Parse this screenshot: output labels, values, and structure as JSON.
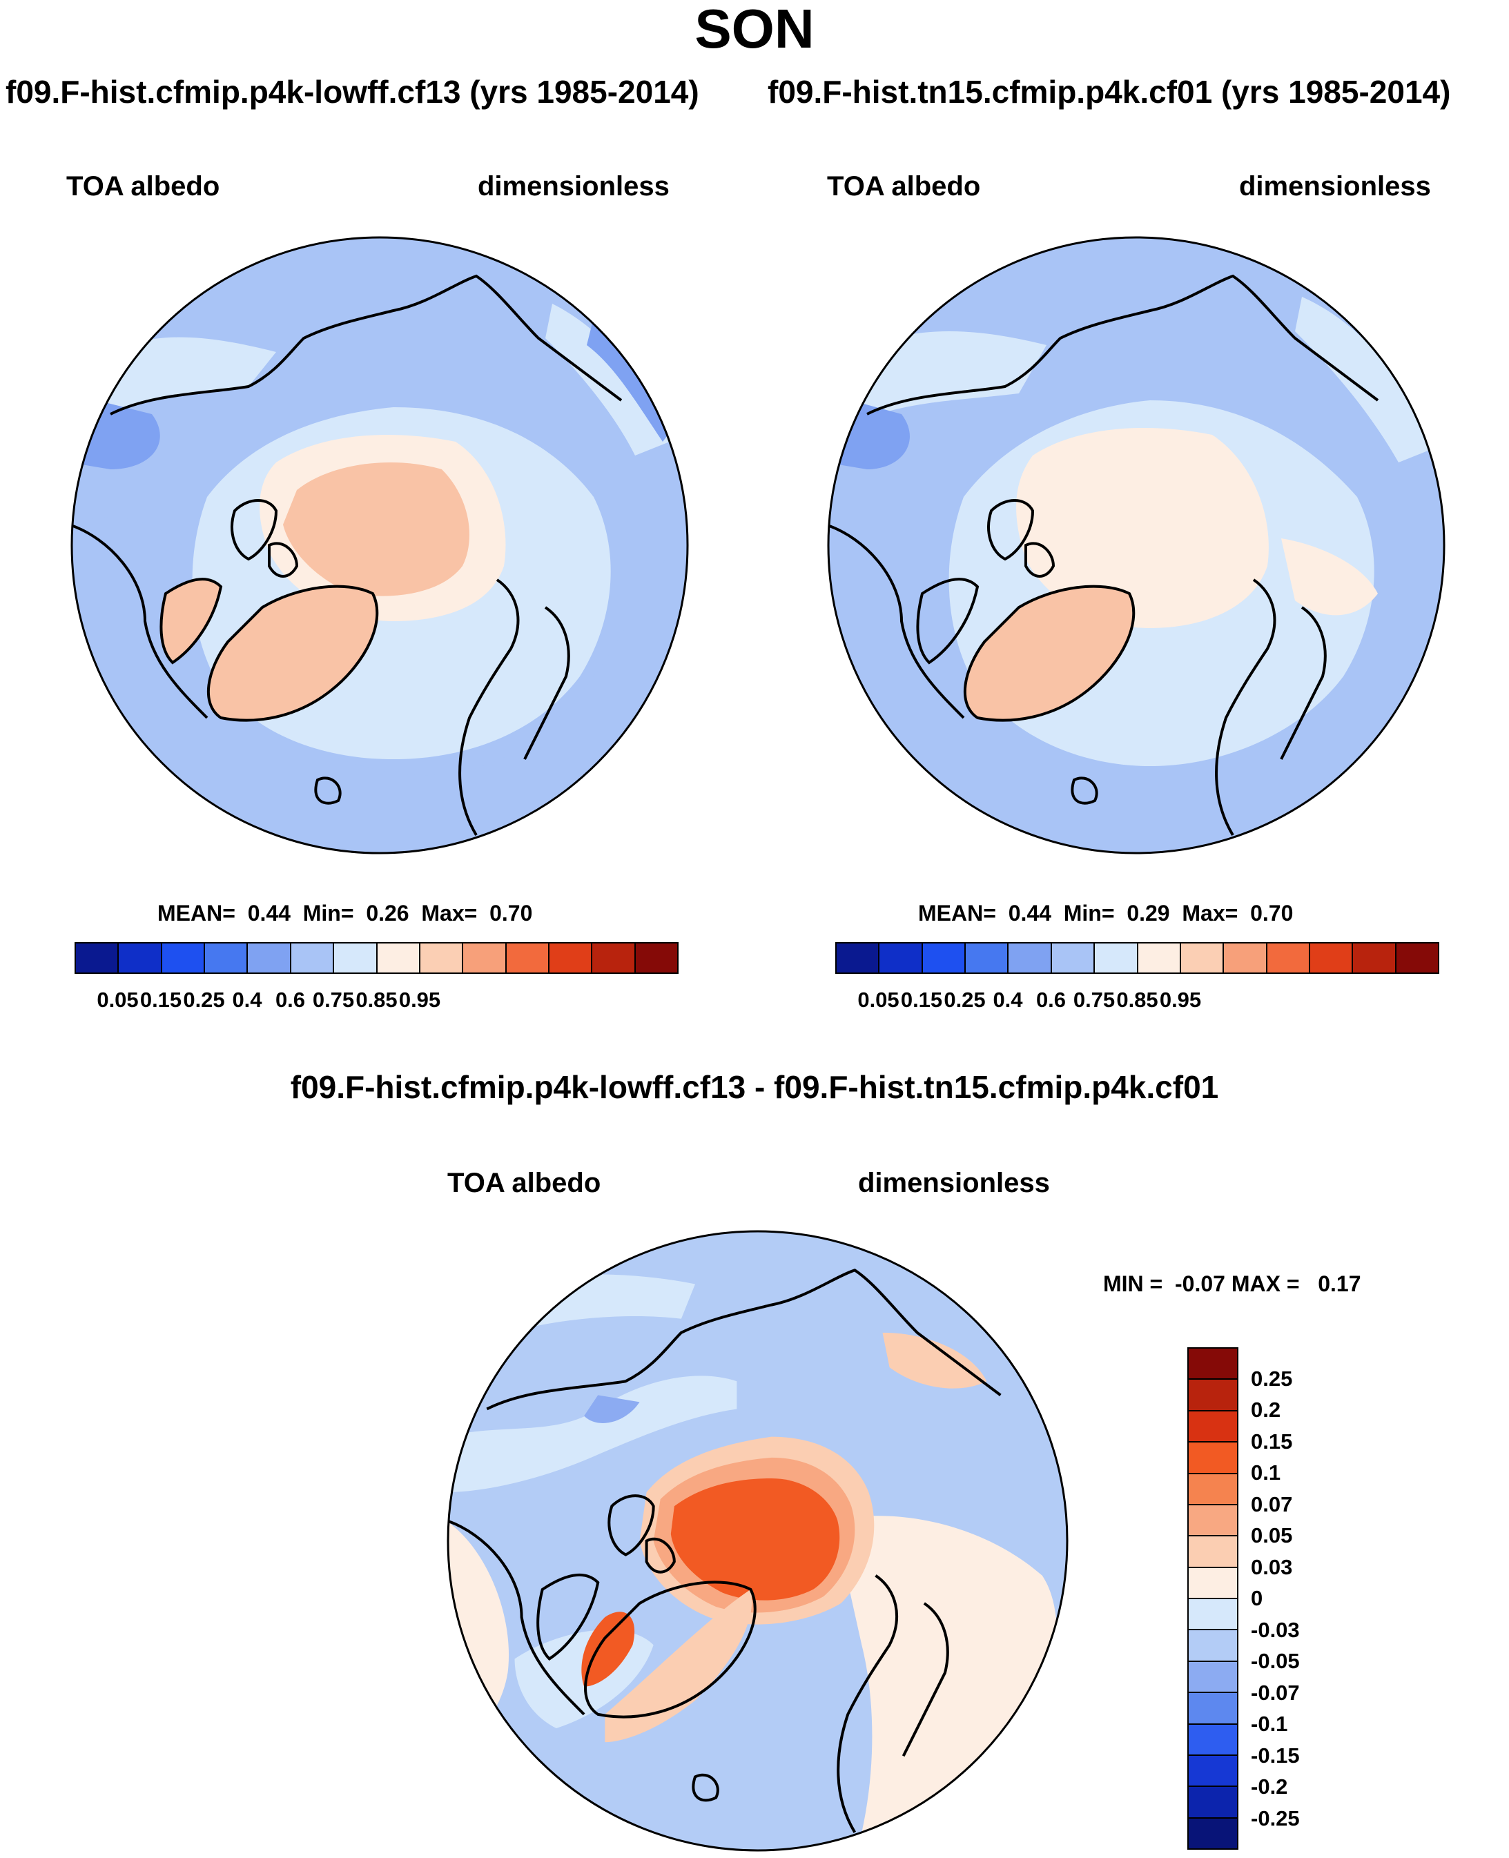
{
  "title": "SON",
  "panels": [
    {
      "case": "f09.F-hist.cfmip.p4k-lowff.cf13 (yrs 1985-2014)",
      "variable": "TOA albedo",
      "units": "dimensionless",
      "stats": "MEAN=  0.44  Min=  0.26  Max=  0.70",
      "colorbar_ticks": [
        "0.05",
        "0.15",
        "0.25",
        "0.4",
        "0.6",
        "0.75",
        "0.85",
        "0.95"
      ]
    },
    {
      "case": "f09.F-hist.tn15.cfmip.p4k.cf01 (yrs 1985-2014)",
      "variable": "TOA albedo",
      "units": "dimensionless",
      "stats": "MEAN=  0.44  Min=  0.29  Max=  0.70",
      "colorbar_ticks": [
        "0.05",
        "0.15",
        "0.25",
        "0.4",
        "0.6",
        "0.75",
        "0.85",
        "0.95"
      ]
    }
  ],
  "difference": {
    "title": "f09.F-hist.cfmip.p4k-lowff.cf13 - f09.F-hist.tn15.cfmip.p4k.cf01",
    "variable": "TOA albedo",
    "units": "dimensionless",
    "stats": "MIN =  -0.07 MAX =   0.17",
    "colorbar_ticks": [
      "0.25",
      "0.2",
      "0.15",
      "0.1",
      "0.07",
      "0.05",
      "0.03",
      "0",
      "-0.03",
      "-0.05",
      "-0.07",
      "-0.1",
      "-0.15",
      "-0.2",
      "-0.25"
    ]
  },
  "colors": {
    "abs_scale": [
      "#0a1990",
      "#0f2fc8",
      "#1e50f0",
      "#4678f0",
      "#7fa2f2",
      "#a9c4f6",
      "#d6e8fb",
      "#fdeee3",
      "#fbcfb4",
      "#f7a07a",
      "#f26a3d",
      "#e03e18",
      "#b8230d",
      "#850a07"
    ],
    "diff_scale": [
      "#850a07",
      "#b8230d",
      "#d83212",
      "#f25a23",
      "#f5834f",
      "#f8a882",
      "#fbceb2",
      "#fdeee3",
      "#d6e8fb",
      "#b3ccf6",
      "#8cabf2",
      "#5d88ef",
      "#2e5df0",
      "#1638d4",
      "#0c24ad",
      "#081478"
    ],
    "ocean_light": "#d6e8fb",
    "ocean_mid": "#a9c4f6",
    "ocean_dark": "#7fa2f2",
    "land_pale": "#fdeee3",
    "land_salmon": "#f9c3a6",
    "diff_hot": "#f25a23",
    "coast": "#000000"
  }
}
